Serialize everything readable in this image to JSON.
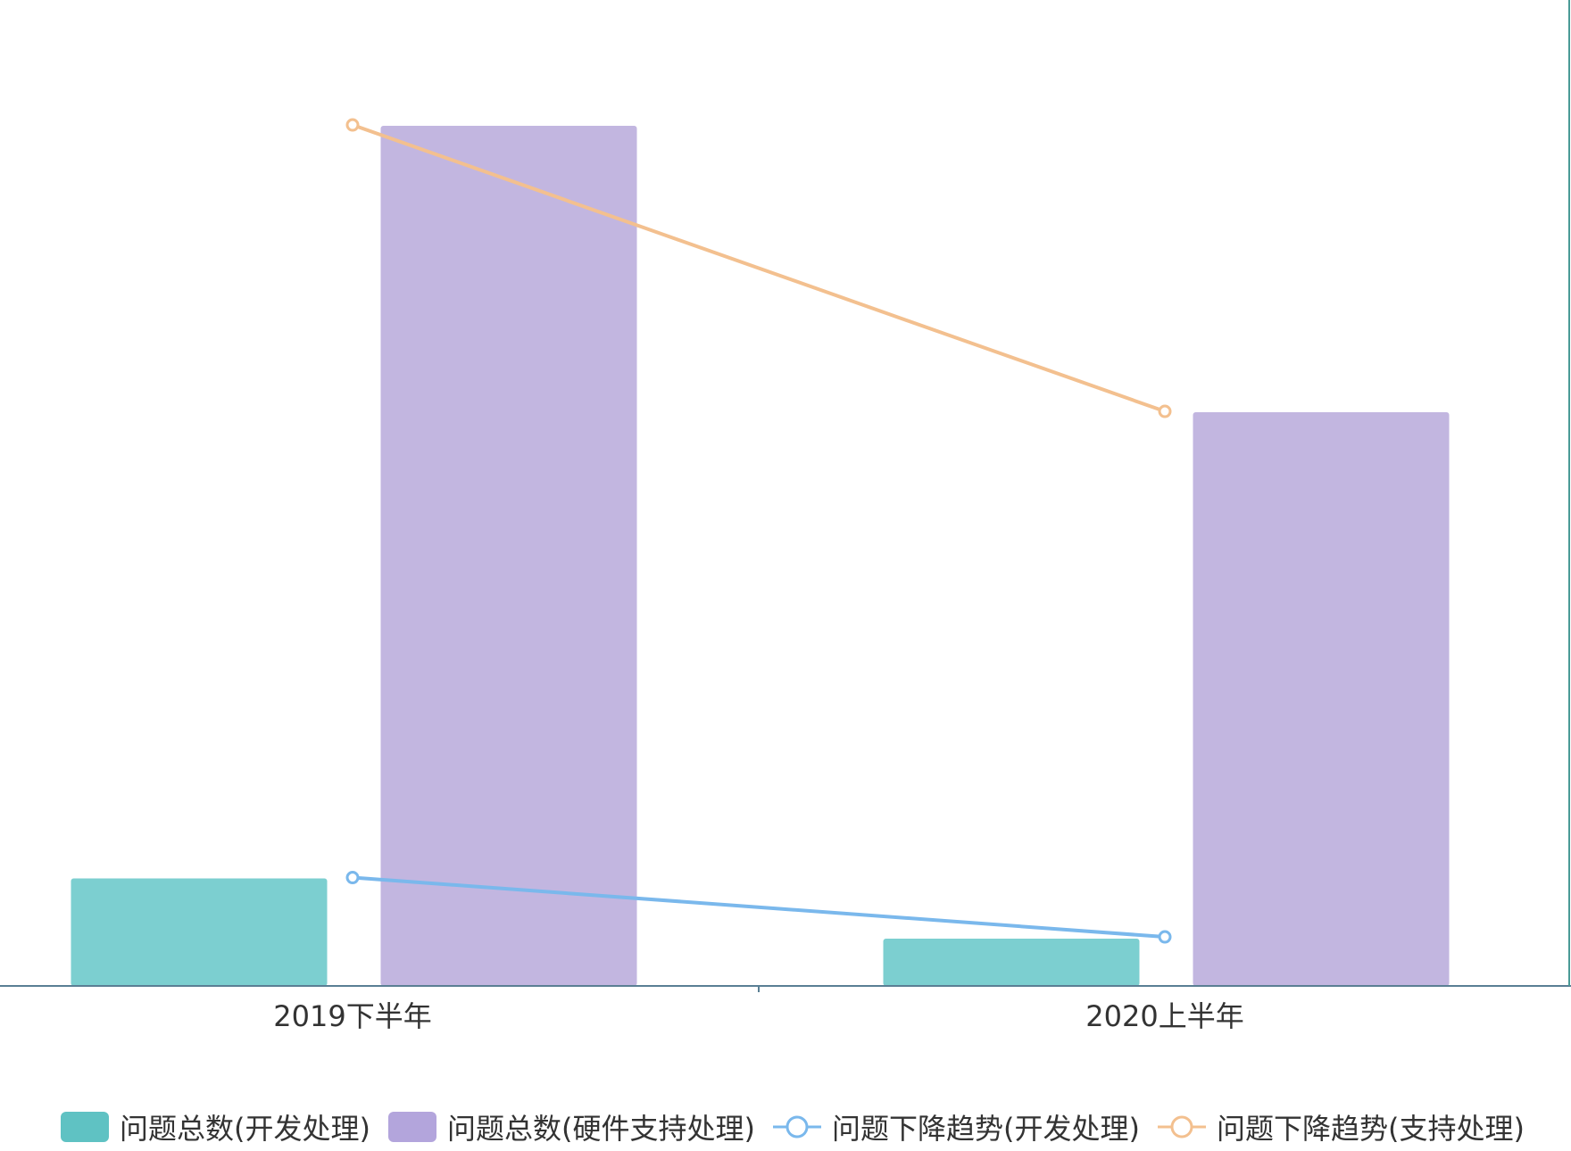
{
  "chart_data": {
    "type": "bar",
    "categories": [
      "2019下半年",
      "2020上半年"
    ],
    "ylim": [
      0,
      100
    ],
    "grid": false,
    "legend_position": "bottom",
    "series": [
      {
        "name": "问题总数(开发处理)",
        "kind": "bar",
        "color": "#7ccfd0",
        "values": [
          12.5,
          5.5
        ]
      },
      {
        "name": "问题总数(硬件支持处理)",
        "kind": "bar",
        "color": "#c2b6e0",
        "values": [
          100,
          66.7
        ]
      },
      {
        "name": "问题下降趋势(开发处理)",
        "kind": "line",
        "color": "#7ab8ec",
        "values": [
          12.6,
          5.7
        ]
      },
      {
        "name": "问题下降趋势(支持处理)",
        "kind": "line",
        "color": "#f3c08f",
        "values": [
          100.1,
          66.8
        ]
      }
    ]
  }
}
